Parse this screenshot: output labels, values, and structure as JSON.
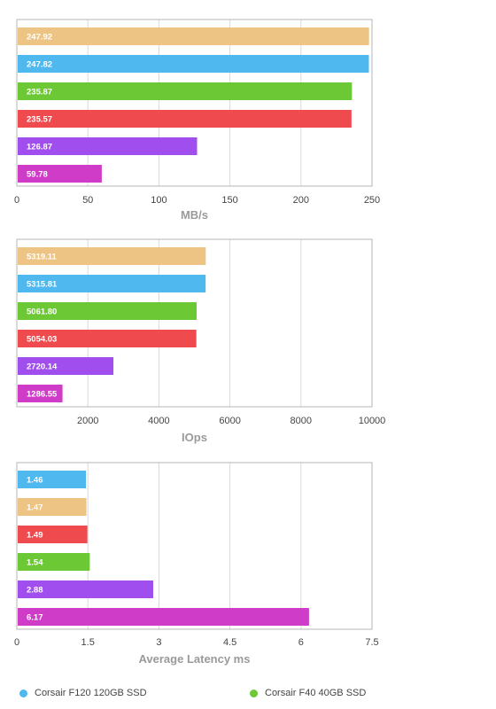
{
  "chart_data": [
    {
      "type": "bar",
      "orientation": "horizontal",
      "xlabel": "MB/s",
      "xlim": [
        0,
        250
      ],
      "xticks": [
        "0",
        "50",
        "100",
        "150",
        "200",
        "250"
      ],
      "grid": true,
      "bars": [
        {
          "value": 247.92,
          "label": "247.92",
          "color": "#EEC484"
        },
        {
          "value": 247.82,
          "label": "247.82",
          "color": "#4FB8EE"
        },
        {
          "value": 235.87,
          "label": "235.87",
          "color": "#6CC835"
        },
        {
          "value": 235.57,
          "label": "235.57",
          "color": "#EF4B4F"
        },
        {
          "value": 126.87,
          "label": "126.87",
          "color": "#A04FEE"
        },
        {
          "value": 59.78,
          "label": "59.78",
          "color": "#CF3CC8"
        }
      ]
    },
    {
      "type": "bar",
      "orientation": "horizontal",
      "xlabel": "IOps",
      "xlim": [
        0,
        10000
      ],
      "xticks": [
        "2000",
        "4000",
        "6000",
        "8000",
        "10000"
      ],
      "grid": true,
      "bars": [
        {
          "value": 5319.11,
          "label": "5319.11",
          "color": "#EEC484"
        },
        {
          "value": 5315.81,
          "label": "5315.81",
          "color": "#4FB8EE"
        },
        {
          "value": 5061.8,
          "label": "5061.80",
          "color": "#6CC835"
        },
        {
          "value": 5054.03,
          "label": "5054.03",
          "color": "#EF4B4F"
        },
        {
          "value": 2720.14,
          "label": "2720.14",
          "color": "#A04FEE"
        },
        {
          "value": 1286.55,
          "label": "1286.55",
          "color": "#CF3CC8"
        }
      ]
    },
    {
      "type": "bar",
      "orientation": "horizontal",
      "xlabel": "Average Latency ms",
      "xlim": [
        0,
        7.5
      ],
      "xticks": [
        "0",
        "1.5",
        "3",
        "4.5",
        "6",
        "7.5"
      ],
      "grid": true,
      "bars": [
        {
          "value": 1.46,
          "label": "1.46",
          "color": "#4FB8EE"
        },
        {
          "value": 1.47,
          "label": "1.47",
          "color": "#EEC484"
        },
        {
          "value": 1.49,
          "label": "1.49",
          "color": "#EF4B4F"
        },
        {
          "value": 1.54,
          "label": "1.54",
          "color": "#6CC835"
        },
        {
          "value": 2.88,
          "label": "2.88",
          "color": "#A04FEE"
        },
        {
          "value": 6.17,
          "label": "6.17",
          "color": "#CF3CC8"
        }
      ]
    }
  ],
  "legend": [
    {
      "label": "Corsair F120 120GB SSD",
      "color": "#4FB8EE"
    },
    {
      "label": "Corsair F40 40GB SSD",
      "color": "#6CC835"
    }
  ],
  "colors": {
    "grid": "#d9d9d9",
    "frame": "#b5b5b5",
    "tick_text": "#444444",
    "axis_label": "#9a9a9a",
    "bar_text": "#ffffff"
  }
}
